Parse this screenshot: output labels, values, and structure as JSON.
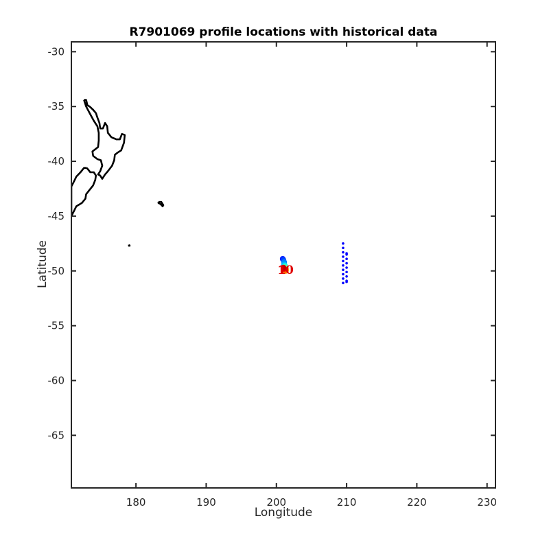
{
  "chart_data": {
    "type": "scatter",
    "title": "R7901069 profile locations with historical data",
    "xlabel": "Longitude",
    "ylabel": "Latitude",
    "xlim": [
      170.8,
      231.2
    ],
    "ylim": [
      -69.8,
      -29.1
    ],
    "xticks": [
      180,
      190,
      200,
      210,
      220,
      230
    ],
    "yticks": [
      -30,
      -35,
      -40,
      -45,
      -50,
      -55,
      -60,
      -65
    ],
    "grid": false,
    "colors": {
      "coastline": "#000000",
      "historical": "#0000ff",
      "axis": "#262626",
      "profile_label": "#e00000"
    },
    "coastlines": [
      {
        "name": "north-island",
        "points": [
          [
            172.6,
            -34.4
          ],
          [
            172.9,
            -34.4
          ],
          [
            173.1,
            -34.9
          ],
          [
            173.4,
            -35.0
          ],
          [
            173.9,
            -35.3
          ],
          [
            174.3,
            -35.6
          ],
          [
            174.5,
            -36.0
          ],
          [
            174.8,
            -36.5
          ],
          [
            174.9,
            -37.0
          ],
          [
            175.3,
            -37.0
          ],
          [
            175.6,
            -36.5
          ],
          [
            175.9,
            -36.8
          ],
          [
            176.0,
            -37.4
          ],
          [
            176.5,
            -37.8
          ],
          [
            177.2,
            -38.0
          ],
          [
            177.7,
            -38.0
          ],
          [
            178.0,
            -37.5
          ],
          [
            178.4,
            -37.6
          ],
          [
            178.3,
            -38.3
          ],
          [
            177.9,
            -39.0
          ],
          [
            177.4,
            -39.2
          ],
          [
            177.0,
            -39.4
          ],
          [
            176.9,
            -39.9
          ],
          [
            176.6,
            -40.4
          ],
          [
            176.0,
            -40.9
          ],
          [
            175.6,
            -41.2
          ],
          [
            175.2,
            -41.6
          ],
          [
            174.9,
            -41.3
          ],
          [
            174.6,
            -41.2
          ],
          [
            174.9,
            -40.9
          ],
          [
            175.2,
            -40.4
          ],
          [
            175.0,
            -39.9
          ],
          [
            174.5,
            -39.8
          ],
          [
            173.9,
            -39.5
          ],
          [
            173.8,
            -39.1
          ],
          [
            174.2,
            -38.9
          ],
          [
            174.6,
            -38.7
          ],
          [
            174.7,
            -38.1
          ],
          [
            174.7,
            -37.4
          ],
          [
            174.5,
            -36.8
          ],
          [
            174.0,
            -36.3
          ],
          [
            173.4,
            -35.6
          ],
          [
            172.9,
            -35.0
          ],
          [
            172.6,
            -34.4
          ]
        ]
      },
      {
        "name": "south-island",
        "points": [
          [
            173.0,
            -40.6
          ],
          [
            173.5,
            -41.0
          ],
          [
            174.0,
            -41.0
          ],
          [
            174.3,
            -41.3
          ],
          [
            174.2,
            -41.7
          ],
          [
            173.9,
            -42.2
          ],
          [
            173.4,
            -42.6
          ],
          [
            172.9,
            -43.0
          ],
          [
            172.8,
            -43.4
          ],
          [
            172.3,
            -43.8
          ],
          [
            171.5,
            -44.1
          ],
          [
            171.2,
            -44.5
          ],
          [
            170.8,
            -45.0
          ],
          [
            170.8,
            -45.0
          ],
          [
            170.8,
            -42.3
          ],
          [
            171.2,
            -41.8
          ],
          [
            171.5,
            -41.4
          ],
          [
            172.1,
            -41.0
          ],
          [
            172.6,
            -40.6
          ],
          [
            173.0,
            -40.6
          ]
        ]
      },
      {
        "name": "chatham-islands",
        "points": [
          [
            183.2,
            -43.7
          ],
          [
            183.6,
            -43.7
          ],
          [
            183.9,
            -44.0
          ],
          [
            183.8,
            -44.1
          ],
          [
            183.5,
            -43.9
          ],
          [
            183.2,
            -43.8
          ],
          [
            183.2,
            -43.7
          ]
        ]
      },
      {
        "name": "antipodes-islands",
        "points": [
          [
            179.0,
            -47.6
          ],
          [
            179.1,
            -47.7
          ],
          [
            179.0,
            -47.7
          ],
          [
            179.0,
            -47.6
          ]
        ]
      }
    ],
    "historical_points": {
      "name": "historical data",
      "color": "#0000ff",
      "x": [
        209.5,
        209.5,
        209.5,
        209.5,
        209.5,
        209.5,
        209.5,
        209.5,
        209.5,
        209.5,
        210.0,
        210.0,
        210.0,
        210.0,
        210.0,
        210.0,
        210.0,
        210.0,
        210.0
      ],
      "y": [
        -47.5,
        -47.9,
        -48.3,
        -48.7,
        -49.1,
        -49.5,
        -49.9,
        -50.3,
        -50.7,
        -51.1,
        -48.4,
        -48.5,
        -48.9,
        -49.3,
        -49.7,
        -50.1,
        -50.5,
        -50.9,
        -51.0
      ]
    },
    "profile_points": {
      "name": "profile locations",
      "x": [
        200.9,
        201.0,
        201.1,
        201.1,
        201.2,
        201.2,
        201.3,
        201.4,
        201.3,
        201.2,
        201.1,
        201.0
      ],
      "y": [
        -48.9,
        -49.0,
        -49.2,
        -49.4,
        -49.5,
        -49.6,
        -49.8,
        -49.9,
        -50.0,
        -49.9,
        -49.8,
        -49.7
      ],
      "colors": [
        "#0018ff",
        "#0040ff",
        "#0080ff",
        "#00b0ff",
        "#00e0ff",
        "#40ffc0",
        "#a0ff60",
        "#ffe000",
        "#ff9000",
        "#ff4000",
        "#e00000",
        "#c00000"
      ]
    },
    "annotations": [
      {
        "text": "1",
        "x": 200.8,
        "y": -49.9,
        "color": "#e00000"
      },
      {
        "text": "10",
        "x": 201.3,
        "y": -49.9,
        "color": "#e00000"
      }
    ]
  }
}
